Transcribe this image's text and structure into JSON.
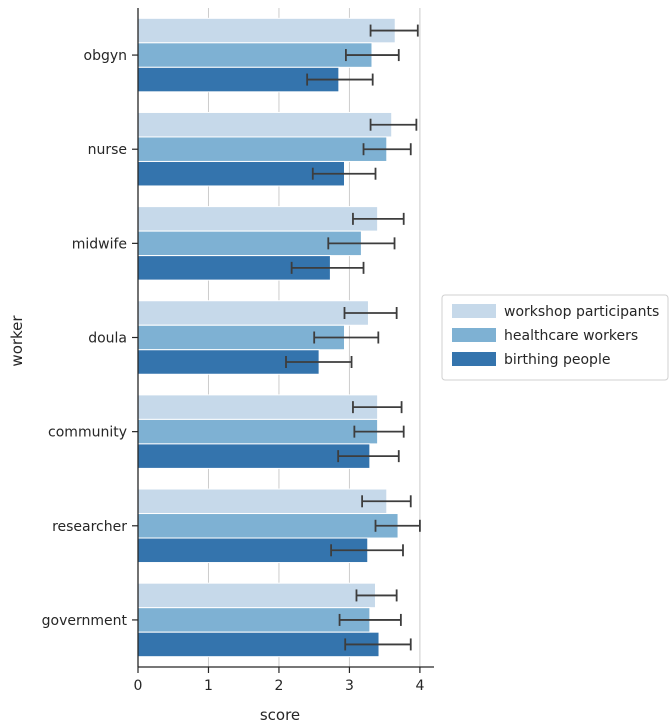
{
  "chart_data": {
    "type": "bar",
    "orientation": "horizontal",
    "xlabel": "score",
    "ylabel": "worker",
    "xlim": [
      0,
      4.2
    ],
    "xticks": [
      0,
      1,
      2,
      3,
      4
    ],
    "grid": "vertical",
    "legend_position": "right",
    "categories": [
      "obgyn",
      "nurse",
      "midwife",
      "doula",
      "community",
      "researcher",
      "government"
    ],
    "series": [
      {
        "name": "workshop participants",
        "color": "#c6d9ea",
        "values": [
          3.65,
          3.6,
          3.4,
          3.27,
          3.4,
          3.53,
          3.37
        ],
        "error_low": [
          3.3,
          3.3,
          3.05,
          2.93,
          3.05,
          3.18,
          3.1
        ],
        "error_high": [
          3.97,
          3.95,
          3.77,
          3.67,
          3.74,
          3.87,
          3.67
        ]
      },
      {
        "name": "healthcare workers",
        "color": "#7eb1d3",
        "values": [
          3.32,
          3.53,
          3.17,
          2.93,
          3.4,
          3.69,
          3.29
        ],
        "error_low": [
          2.95,
          3.2,
          2.7,
          2.5,
          3.07,
          3.37,
          2.86
        ],
        "error_high": [
          3.7,
          3.87,
          3.64,
          3.41,
          3.77,
          4.0,
          3.73
        ]
      },
      {
        "name": "birthing people",
        "color": "#3474ad",
        "values": [
          2.85,
          2.93,
          2.73,
          2.57,
          3.29,
          3.26,
          3.42
        ],
        "error_low": [
          2.4,
          2.48,
          2.18,
          2.1,
          2.84,
          2.74,
          2.94
        ],
        "error_high": [
          3.33,
          3.37,
          3.2,
          3.03,
          3.7,
          3.76,
          3.87
        ]
      }
    ]
  }
}
